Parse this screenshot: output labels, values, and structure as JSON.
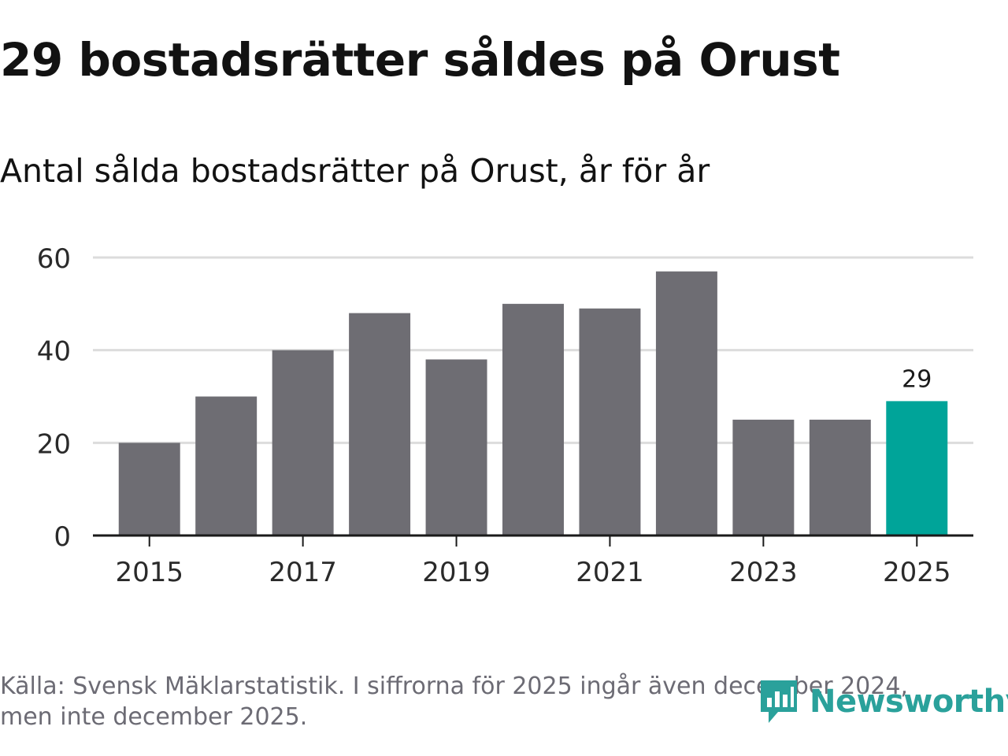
{
  "header": {
    "title": "29 bostadsrätter såldes på Orust",
    "subtitle": "Antal sålda bostadsrätter på Orust, år för år"
  },
  "footer": {
    "source_line1": "Källa: Svensk Mäklarstatistik. I siffrorna för 2025 ingår även december 2024,",
    "source_line2": "men inte december 2025."
  },
  "logo": {
    "name": "Newsworthy",
    "icon": "newsworthy-chat-chart-icon"
  },
  "colors": {
    "bar": "#6e6d73",
    "highlight": "#00a499",
    "grid": "#dcdcdc",
    "axis": "#1a1a1a",
    "text": "#2a2a2a",
    "muted": "#6c6b74",
    "brand": "#2aa19b"
  },
  "chart_data": {
    "type": "bar",
    "title": "Antal sålda bostadsrätter på Orust, år för år",
    "xlabel": "",
    "ylabel": "",
    "categories": [
      "2015",
      "2016",
      "2017",
      "2018",
      "2019",
      "2020",
      "2021",
      "2022",
      "2023",
      "2024",
      "2025"
    ],
    "values": [
      20,
      30,
      40,
      48,
      38,
      50,
      49,
      57,
      25,
      25,
      29
    ],
    "ylim": [
      0,
      60
    ],
    "yticks": [
      0,
      20,
      40,
      60
    ],
    "xticks": [
      "2015",
      "2017",
      "2019",
      "2021",
      "2023",
      "2025"
    ],
    "highlight_category": "2025",
    "data_labels": [
      {
        "category": "2025",
        "text": "29"
      }
    ],
    "grid": true
  }
}
